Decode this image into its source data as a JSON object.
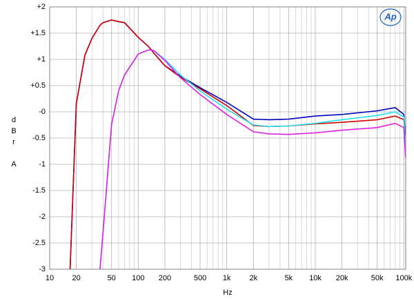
{
  "chart_data": {
    "type": "line",
    "xlabel": "Hz",
    "ylabel": "dBr A",
    "logo": "Ap",
    "log_x": true,
    "grid": true,
    "xlim": [
      10,
      105000
    ],
    "ylim": [
      -3,
      2
    ],
    "xticks": [
      10,
      20,
      50,
      100,
      200,
      500,
      {
        "value": 1000,
        "label": "1k"
      },
      {
        "value": 2000,
        "label": "2k"
      },
      {
        "value": 5000,
        "label": "5k"
      },
      {
        "value": 10000,
        "label": "10k"
      },
      {
        "value": 20000,
        "label": "20k"
      },
      {
        "value": 50000,
        "label": "50k"
      },
      {
        "value": 100000,
        "label": "100k"
      }
    ],
    "xminor": [
      30,
      40,
      60,
      70,
      80,
      90,
      300,
      400,
      600,
      700,
      800,
      900,
      3000,
      4000,
      6000,
      7000,
      8000,
      9000,
      30000,
      40000,
      60000,
      70000,
      80000,
      90000
    ],
    "yticks": [
      {
        "value": 2,
        "label": "+2"
      },
      {
        "value": 1.5,
        "label": "+1.5"
      },
      {
        "value": 1,
        "label": "+1"
      },
      {
        "value": 0.5,
        "label": "+0.5"
      },
      {
        "value": 0,
        "label": "-0"
      },
      -0.5,
      -1,
      -1.5,
      -2,
      -2.5,
      -3
    ],
    "x": [
      17,
      20,
      25,
      30,
      37,
      40,
      50,
      60,
      70,
      100,
      130,
      150,
      200,
      300,
      500,
      1000,
      2000,
      3000,
      5000,
      10000,
      20000,
      50000,
      80000,
      100000,
      105000
    ],
    "series": [
      {
        "name": "blue",
        "color": "#0000c0",
        "values": [
          -3,
          0.16,
          1.08,
          1.4,
          1.65,
          1.7,
          1.75,
          1.72,
          1.7,
          1.42,
          1.25,
          1.12,
          0.88,
          0.68,
          0.46,
          0.18,
          -0.14,
          -0.15,
          -0.14,
          -0.08,
          -0.05,
          0.02,
          0.08,
          -0.05,
          -0.55
        ]
      },
      {
        "name": "red",
        "color": "#d00000",
        "values": [
          -3,
          0.16,
          1.08,
          1.4,
          1.65,
          1.7,
          1.75,
          1.72,
          1.7,
          1.42,
          1.25,
          1.12,
          0.88,
          0.66,
          0.44,
          0.12,
          -0.26,
          -0.28,
          -0.27,
          -0.23,
          -0.2,
          -0.15,
          -0.08,
          -0.15,
          -0.6
        ]
      },
      {
        "name": "cyan",
        "color": "#20e0f0",
        "values": [
          null,
          null,
          null,
          null,
          -3,
          -2.3,
          -0.24,
          0.4,
          0.7,
          1.1,
          1.18,
          1.17,
          1.0,
          0.7,
          0.4,
          0.05,
          -0.25,
          -0.28,
          -0.27,
          -0.22,
          -0.15,
          -0.07,
          0,
          -0.1,
          -0.7
        ]
      },
      {
        "name": "magenta",
        "color": "#e020e0",
        "values": [
          null,
          null,
          null,
          null,
          -3,
          -2.3,
          -0.24,
          0.4,
          0.7,
          1.1,
          1.18,
          1.17,
          0.98,
          0.65,
          0.33,
          -0.05,
          -0.38,
          -0.42,
          -0.43,
          -0.4,
          -0.35,
          -0.3,
          -0.22,
          -0.3,
          -0.88
        ]
      }
    ]
  }
}
